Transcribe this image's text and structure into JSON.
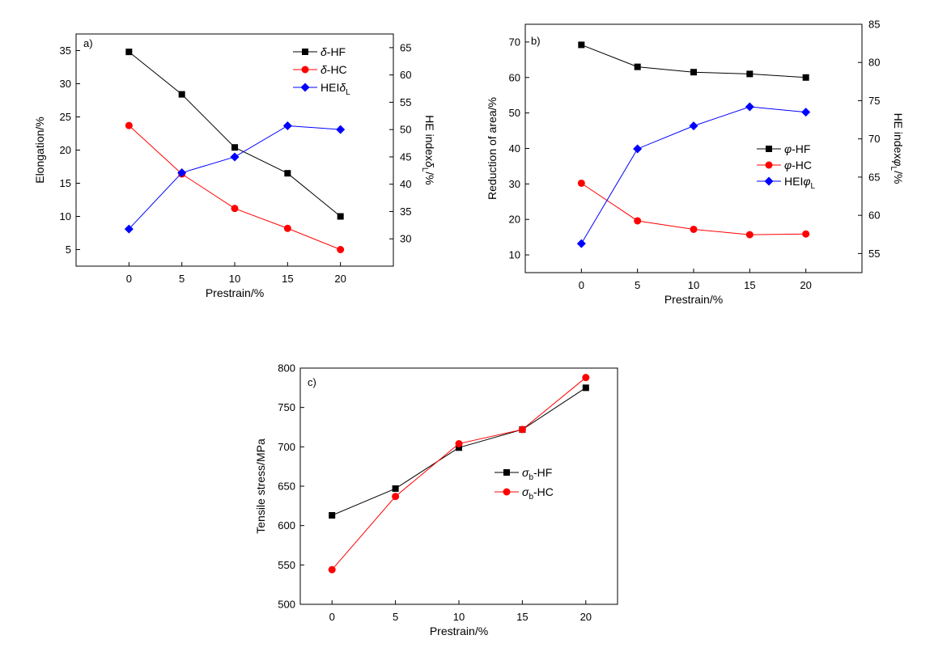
{
  "chart_data": [
    {
      "type": "line",
      "panel_label": "a)",
      "x": [
        0,
        5,
        10,
        15,
        20
      ],
      "xlabel": "Prestrain/%",
      "xlim": [
        -5,
        25
      ],
      "xticks": [
        0,
        5,
        10,
        15,
        20
      ],
      "ylabel": "Elongation/%",
      "ylim": [
        2.5,
        37.5
      ],
      "yticks": [
        5,
        10,
        15,
        20,
        25,
        30,
        35
      ],
      "y2label": {
        "main": "HE index",
        "sym": "δ",
        "sub": "L",
        "unit": "/%"
      },
      "y2lim": [
        25,
        67.5
      ],
      "y2ticks": [
        30,
        35,
        40,
        45,
        50,
        55,
        60,
        65
      ],
      "series": [
        {
          "name": "δ-HF",
          "sym": "δ",
          "suffix": "-HF",
          "sub": "",
          "axis": "left",
          "color": "#000000",
          "marker": "square",
          "values": [
            34.8,
            28.4,
            20.4,
            16.5,
            10.0
          ]
        },
        {
          "name": "δ-HC",
          "sym": "δ",
          "suffix": "-HC",
          "sub": "",
          "axis": "left",
          "color": "#ff0000",
          "marker": "circle",
          "values": [
            23.7,
            16.4,
            11.2,
            8.2,
            5.0
          ]
        },
        {
          "name": "HEIδL",
          "prefix": "HEI",
          "sym": "δ",
          "sub": "L",
          "axis": "right",
          "color": "#0000ff",
          "marker": "diamond",
          "values": [
            31.8,
            42.1,
            45.0,
            50.7,
            50.0
          ]
        }
      ]
    },
    {
      "type": "line",
      "panel_label": "b)",
      "x": [
        0,
        5,
        10,
        15,
        20
      ],
      "xlabel": "Prestrain/%",
      "xlim": [
        -5,
        25
      ],
      "xticks": [
        0,
        5,
        10,
        15,
        20
      ],
      "ylabel": "Reduction of area/%",
      "ylim": [
        5,
        75
      ],
      "yticks": [
        10,
        20,
        30,
        40,
        50,
        60,
        70
      ],
      "y2label": {
        "main": "HE index",
        "sym": "φ",
        "sub": "L",
        "unit": "/%"
      },
      "y2lim": [
        52.5,
        85
      ],
      "y2ticks": [
        55,
        60,
        65,
        70,
        75,
        80,
        85
      ],
      "series": [
        {
          "name": "φ-HF",
          "sym": "φ",
          "suffix": "-HF",
          "sub": "",
          "axis": "left",
          "color": "#000000",
          "marker": "square",
          "values": [
            69.2,
            63.0,
            61.5,
            61.0,
            60.0
          ]
        },
        {
          "name": "φ-HC",
          "sym": "φ",
          "suffix": "-HC",
          "sub": "",
          "axis": "left",
          "color": "#ff0000",
          "marker": "circle",
          "values": [
            30.2,
            19.6,
            17.2,
            15.7,
            15.9
          ]
        },
        {
          "name": "HEIφL",
          "prefix": "HEI",
          "sym": "φ",
          "sub": "L",
          "axis": "right",
          "color": "#0000ff",
          "marker": "diamond",
          "values": [
            56.3,
            68.7,
            71.7,
            74.2,
            73.5
          ]
        }
      ]
    },
    {
      "type": "line",
      "panel_label": "c)",
      "x": [
        0,
        5,
        10,
        15,
        20
      ],
      "xlabel": "Prestrain/%",
      "xlim": [
        -2.5,
        22.5
      ],
      "xticks": [
        0,
        5,
        10,
        15,
        20
      ],
      "ylabel": "Tensile stress/MPa",
      "ylim": [
        500,
        800
      ],
      "yticks": [
        500,
        550,
        600,
        650,
        700,
        750,
        800
      ],
      "series": [
        {
          "name": "σb-HF",
          "sym": "σ",
          "suffix": "-HF",
          "sub": "b",
          "axis": "left",
          "color": "#000000",
          "marker": "square",
          "values": [
            613,
            647,
            699,
            722,
            775
          ]
        },
        {
          "name": "σb-HC",
          "sym": "σ",
          "suffix": "-HC",
          "sub": "b",
          "axis": "left",
          "color": "#ff0000",
          "marker": "circle",
          "values": [
            544,
            637,
            704,
            722,
            788
          ]
        }
      ]
    }
  ]
}
